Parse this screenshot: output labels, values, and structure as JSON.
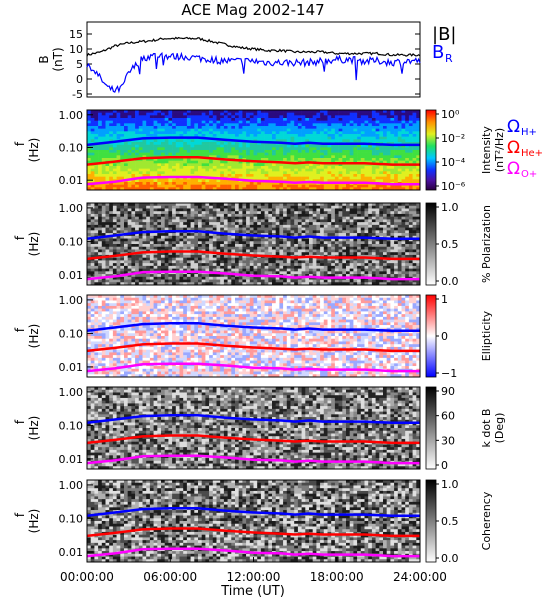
{
  "title": "ACE Mag 2002-147",
  "xlabel": "Time (UT)",
  "xticks": [
    "00:00:00",
    "06:00:00",
    "12:00:00",
    "18:00:00",
    "24:00:00"
  ],
  "colors": {
    "btot": "#000000",
    "br": "#0000ff",
    "h_plus": "#0000ff",
    "he_plus": "#ff0000",
    "o_plus": "#ff00ff"
  },
  "chart_data": [
    {
      "type": "line",
      "panel": "magnetic field",
      "ylabel": "B",
      "yunit": "(nT)",
      "ylim": [
        -6,
        19
      ],
      "yticks": [
        "-5",
        "0",
        "5",
        "10",
        "15"
      ],
      "xlim_hours": [
        0,
        24
      ],
      "legend": [
        "|B|",
        "B",
        "R"
      ],
      "series": [
        {
          "name": "|B|",
          "x_hours": [
            0,
            1,
            2,
            3,
            4,
            5,
            5.5,
            6,
            7,
            8,
            9,
            10,
            11,
            12,
            13,
            14,
            15,
            16,
            17,
            18,
            19,
            20,
            21,
            22,
            23,
            24
          ],
          "values": [
            8,
            9,
            11,
            12,
            12.5,
            13,
            13.5,
            13.5,
            13.5,
            13.5,
            12.5,
            11.5,
            10.5,
            10,
            9.5,
            9.5,
            9,
            9,
            9,
            8.5,
            8.5,
            8.5,
            8.5,
            8,
            8,
            8
          ]
        },
        {
          "name": "B_R",
          "x_hours": [
            0,
            0.5,
            1,
            1.5,
            2,
            2.5,
            3,
            4,
            5,
            6,
            7,
            8,
            9,
            10,
            11,
            12,
            13,
            14,
            15,
            16,
            17,
            18,
            19,
            20,
            21,
            22,
            23,
            24
          ],
          "values": [
            5,
            3,
            0,
            -3,
            -4,
            -3,
            2,
            7,
            8,
            7.5,
            7.5,
            7,
            6.5,
            6,
            6,
            6,
            5.5,
            5.5,
            5.5,
            5.5,
            6,
            6.5,
            6.5,
            6,
            6,
            5.5,
            6,
            6
          ]
        }
      ]
    },
    {
      "type": "heatmap",
      "panel": "intensity spectrogram",
      "ylabel": "f",
      "yunit": "(Hz)",
      "ylim": [
        0.005,
        1.4
      ],
      "yscale": "log",
      "yticks": [
        "0.01",
        "0.10",
        "1.00"
      ],
      "colorbar": {
        "label": "Intensity",
        "unit": "(nT²/Hz)",
        "ticks": [
          "10⁰",
          "10⁻²",
          "10⁻⁴",
          "10⁻⁶"
        ],
        "scale": "log",
        "range": [
          1e-06,
          1
        ]
      },
      "legend": [
        "Ω",
        "H+",
        "Ω",
        "He+",
        "Ω",
        "O+"
      ]
    },
    {
      "type": "heatmap",
      "panel": "polarization",
      "ylabel": "f",
      "yunit": "(Hz)",
      "yscale": "log",
      "yticks": [
        "0.01",
        "0.10",
        "1.00"
      ],
      "colorbar": {
        "label": "% Polarization",
        "ticks": [
          "1.0",
          "0.5",
          "0.0"
        ],
        "range": [
          0,
          1
        ]
      }
    },
    {
      "type": "heatmap",
      "panel": "ellipticity",
      "ylabel": "f",
      "yunit": "(Hz)",
      "yscale": "log",
      "yticks": [
        "0.01",
        "0.10",
        "1.00"
      ],
      "colorbar": {
        "label": "Ellipticity",
        "ticks": [
          "1",
          "0",
          "−1"
        ],
        "range": [
          -1,
          1
        ]
      }
    },
    {
      "type": "heatmap",
      "panel": "wave normal angle",
      "ylabel": "f",
      "yunit": "(Hz)",
      "yscale": "log",
      "yticks": [
        "0.01",
        "0.10",
        "1.00"
      ],
      "colorbar": {
        "label": "k dot B",
        "unit": "(Deg)",
        "ticks": [
          "90",
          "60",
          "30",
          "0"
        ],
        "range": [
          0,
          90
        ]
      }
    },
    {
      "type": "heatmap",
      "panel": "coherency",
      "ylabel": "f",
      "yunit": "(Hz)",
      "yscale": "log",
      "yticks": [
        "0.01",
        "0.10",
        "1.00"
      ],
      "colorbar": {
        "label": "Coherency",
        "ticks": [
          "1.0",
          "0.5",
          "0.0"
        ],
        "range": [
          0,
          1
        ]
      }
    }
  ],
  "gyrofrequency_traces_hz": {
    "x_hours": [
      0,
      2,
      4,
      6,
      8,
      10,
      12,
      14,
      15,
      16,
      17,
      18,
      20,
      22,
      24
    ],
    "h_plus": [
      0.12,
      0.15,
      0.19,
      0.2,
      0.2,
      0.17,
      0.15,
      0.14,
      0.13,
      0.14,
      0.13,
      0.13,
      0.13,
      0.12,
      0.12
    ],
    "he_plus": [
      0.03,
      0.037,
      0.047,
      0.05,
      0.05,
      0.043,
      0.038,
      0.035,
      0.033,
      0.035,
      0.033,
      0.033,
      0.033,
      0.03,
      0.03
    ],
    "o_plus": [
      0.0075,
      0.009,
      0.012,
      0.0125,
      0.0125,
      0.011,
      0.0095,
      0.009,
      0.0083,
      0.0088,
      0.0083,
      0.0083,
      0.0083,
      0.0075,
      0.0075
    ]
  }
}
